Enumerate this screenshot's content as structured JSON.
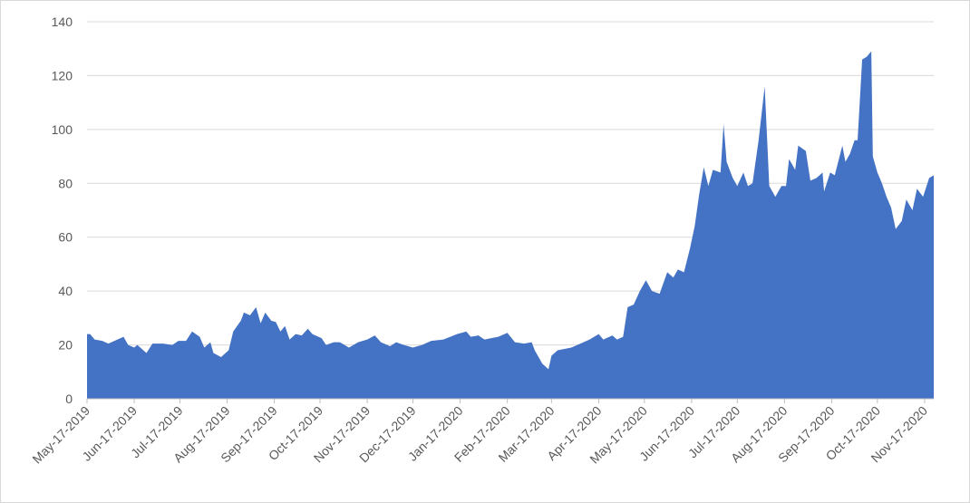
{
  "chart_data": {
    "type": "area",
    "color": "#4472c4",
    "grid": true,
    "xlim": [
      "2019-05-17",
      "2020-11-23"
    ],
    "xticks": [
      {
        "value": "2019-05-17",
        "label": "May-17-2019"
      },
      {
        "value": "2019-06-17",
        "label": "Jun-17-2019"
      },
      {
        "value": "2019-07-17",
        "label": "Jul-17-2019"
      },
      {
        "value": "2019-08-17",
        "label": "Aug-17-2019"
      },
      {
        "value": "2019-09-17",
        "label": "Sep-17-2019"
      },
      {
        "value": "2019-10-17",
        "label": "Oct-17-2019"
      },
      {
        "value": "2019-11-17",
        "label": "Nov-17-2019"
      },
      {
        "value": "2019-12-17",
        "label": "Dec-17-2019"
      },
      {
        "value": "2020-01-17",
        "label": "Jan-17-2020"
      },
      {
        "value": "2020-02-17",
        "label": "Feb-17-2020"
      },
      {
        "value": "2020-03-17",
        "label": "Mar-17-2020"
      },
      {
        "value": "2020-04-17",
        "label": "Apr-17-2020"
      },
      {
        "value": "2020-05-17",
        "label": "May-17-2020"
      },
      {
        "value": "2020-06-17",
        "label": "Jun-17-2020"
      },
      {
        "value": "2020-07-17",
        "label": "Jul-17-2020"
      },
      {
        "value": "2020-08-17",
        "label": "Aug-17-2020"
      },
      {
        "value": "2020-09-17",
        "label": "Sep-17-2020"
      },
      {
        "value": "2020-10-17",
        "label": "Oct-17-2020"
      },
      {
        "value": "2020-11-17",
        "label": "Nov-17-2020"
      }
    ],
    "ylim": [
      0,
      140
    ],
    "yticks": [
      0,
      20,
      40,
      60,
      80,
      100,
      120,
      140
    ],
    "x": [
      "2019-05-17",
      "2019-05-19",
      "2019-05-22",
      "2019-05-27",
      "2019-05-31",
      "2019-06-06",
      "2019-06-10",
      "2019-06-13",
      "2019-06-17",
      "2019-06-19",
      "2019-06-23",
      "2019-06-25",
      "2019-06-29",
      "2019-07-06",
      "2019-07-12",
      "2019-07-16",
      "2019-07-21",
      "2019-07-25",
      "2019-07-30",
      "2019-08-02",
      "2019-08-06",
      "2019-08-08",
      "2019-08-13",
      "2019-08-18",
      "2019-08-21",
      "2019-08-26",
      "2019-08-28",
      "2019-09-01",
      "2019-09-05",
      "2019-09-08",
      "2019-09-11",
      "2019-09-15",
      "2019-09-18",
      "2019-09-21",
      "2019-09-24",
      "2019-09-27",
      "2019-10-01",
      "2019-10-05",
      "2019-10-09",
      "2019-10-12",
      "2019-10-18",
      "2019-10-21",
      "2019-10-26",
      "2019-10-30",
      "2019-11-05",
      "2019-11-11",
      "2019-11-17",
      "2019-11-22",
      "2019-11-26",
      "2019-12-02",
      "2019-12-06",
      "2019-12-11",
      "2019-12-17",
      "2019-12-23",
      "2019-12-29",
      "2020-01-06",
      "2020-01-15",
      "2020-01-21",
      "2020-01-24",
      "2020-01-29",
      "2020-02-02",
      "2020-02-11",
      "2020-02-17",
      "2020-02-22",
      "2020-02-28",
      "2020-03-04",
      "2020-03-06",
      "2020-03-11",
      "2020-03-15",
      "2020-03-17",
      "2020-03-21",
      "2020-03-30",
      "2020-04-05",
      "2020-04-11",
      "2020-04-17",
      "2020-04-20",
      "2020-04-26",
      "2020-04-29",
      "2020-05-03",
      "2020-05-06",
      "2020-05-10",
      "2020-05-14",
      "2020-05-18",
      "2020-05-22",
      "2020-05-27",
      "2020-06-01",
      "2020-06-05",
      "2020-06-08",
      "2020-06-12",
      "2020-06-16",
      "2020-06-19",
      "2020-06-22",
      "2020-06-25",
      "2020-06-28",
      "2020-07-01",
      "2020-07-06",
      "2020-07-08",
      "2020-07-10",
      "2020-07-14",
      "2020-07-17",
      "2020-07-21",
      "2020-07-24",
      "2020-07-27",
      "2020-07-31",
      "2020-08-04",
      "2020-08-07",
      "2020-08-11",
      "2020-08-15",
      "2020-08-18",
      "2020-08-20",
      "2020-08-24",
      "2020-08-26",
      "2020-08-31",
      "2020-09-03",
      "2020-09-07",
      "2020-09-11",
      "2020-09-12",
      "2020-09-16",
      "2020-09-19",
      "2020-09-24",
      "2020-09-26",
      "2020-09-29",
      "2020-10-02",
      "2020-10-04",
      "2020-10-07",
      "2020-10-10",
      "2020-10-13",
      "2020-10-14",
      "2020-10-17",
      "2020-10-20",
      "2020-10-23",
      "2020-10-26",
      "2020-10-29",
      "2020-11-02",
      "2020-11-05",
      "2020-11-09",
      "2020-11-12",
      "2020-11-16",
      "2020-11-20",
      "2020-11-23"
    ],
    "values": [
      24,
      24,
      22,
      21.5,
      20.5,
      22,
      23,
      20,
      19,
      20,
      18,
      17,
      20.5,
      20.5,
      20,
      21.5,
      21.5,
      25,
      23,
      19,
      21,
      17,
      15.5,
      18,
      25,
      29,
      32,
      31,
      34,
      28,
      32,
      29,
      28.5,
      25,
      27,
      22,
      24,
      23.5,
      26,
      24,
      22.5,
      20,
      21,
      21,
      19,
      21,
      22,
      23.5,
      21,
      19.5,
      21,
      20,
      19,
      20,
      21.5,
      22,
      24,
      25,
      23,
      23.5,
      22,
      23,
      24.5,
      21,
      20.5,
      21,
      18,
      13,
      11,
      16,
      18,
      19,
      20.5,
      22,
      24,
      22,
      23.5,
      22,
      23,
      34,
      35,
      40,
      44,
      40,
      39,
      47,
      45,
      48,
      47,
      56,
      64,
      76,
      86,
      79,
      85,
      84,
      102,
      88,
      82,
      79,
      84,
      79,
      80,
      96,
      116,
      79,
      75,
      79,
      79,
      89,
      85,
      94,
      92,
      81,
      82,
      84,
      77,
      84,
      83,
      94,
      88,
      91,
      96,
      96,
      126,
      127,
      129,
      90,
      84,
      80,
      75,
      71,
      63,
      66,
      74,
      70,
      78,
      75,
      82,
      83
    ]
  }
}
